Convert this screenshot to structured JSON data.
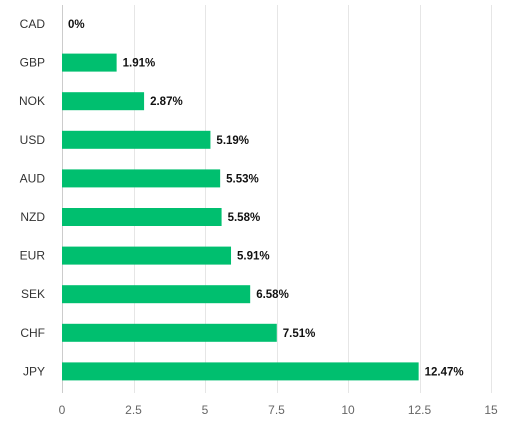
{
  "chart_data": {
    "type": "bar",
    "orientation": "horizontal",
    "categories": [
      "CAD",
      "GBP",
      "NOK",
      "USD",
      "AUD",
      "NZD",
      "EUR",
      "SEK",
      "CHF",
      "JPY"
    ],
    "values": [
      0,
      1.91,
      2.87,
      5.19,
      5.53,
      5.58,
      5.91,
      6.58,
      7.51,
      12.47
    ],
    "data_labels": [
      "0%",
      "1.91%",
      "2.87%",
      "5.19%",
      "5.53%",
      "5.58%",
      "5.91%",
      "6.58%",
      "7.51%",
      "12.47%"
    ],
    "xlim": [
      0,
      15
    ],
    "x_ticks": [
      0,
      2.5,
      5,
      7.5,
      10,
      12.5,
      15
    ],
    "x_tick_labels": [
      "0",
      "2.5",
      "5",
      "7.5",
      "10",
      "12.5",
      "15"
    ],
    "grid": true,
    "legend": "none",
    "bar_color": "#00bf6f",
    "grid_color": "#e6e6e6"
  }
}
